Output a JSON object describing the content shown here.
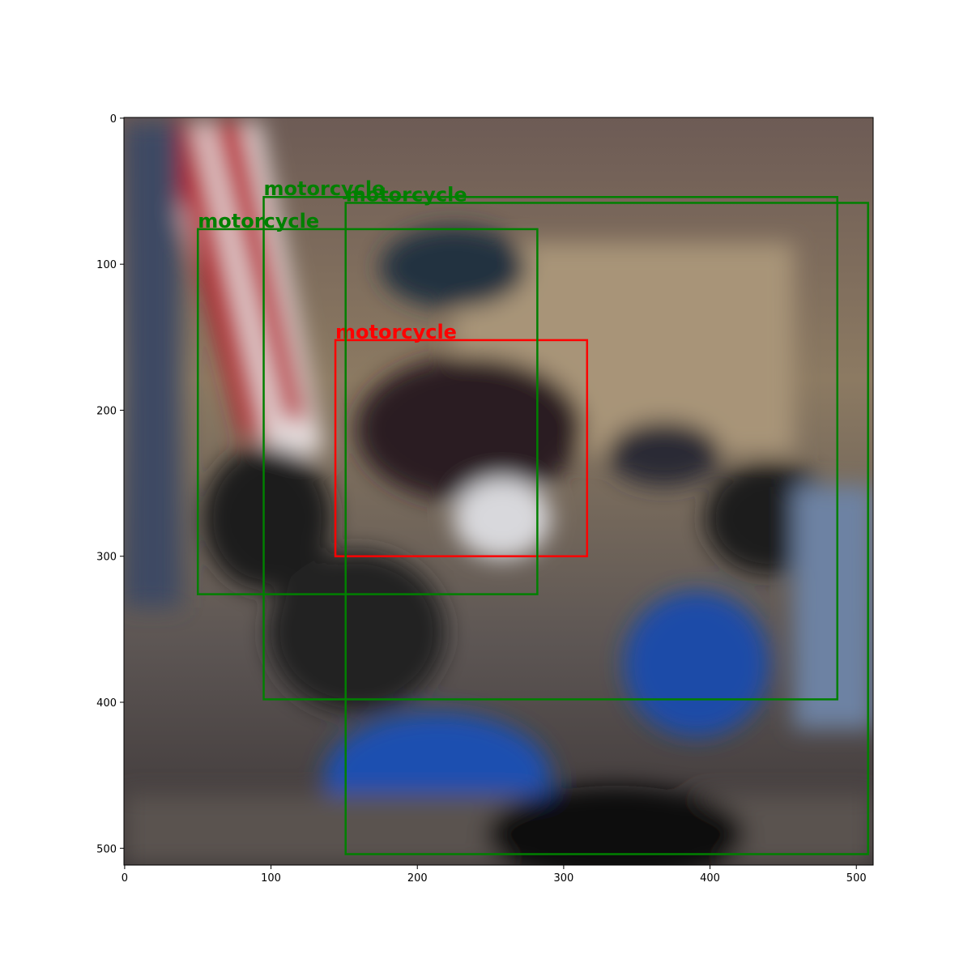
{
  "chart_data": {
    "type": "detection",
    "xlim": [
      -0.5,
      511.5
    ],
    "ylim": [
      511.5,
      -0.5
    ],
    "xticks": [
      0,
      100,
      200,
      300,
      400,
      500
    ],
    "yticks": [
      0,
      100,
      200,
      300,
      400,
      500
    ],
    "boxes": [
      {
        "label": "motorcycle",
        "color": "#ff0000",
        "x0": 144,
        "y0": 152,
        "x1": 316,
        "y1": 300
      },
      {
        "label": "motorcycle",
        "color": "#008000",
        "x0": 50,
        "y0": 76,
        "x1": 282,
        "y1": 326
      },
      {
        "label": "motorcycle",
        "color": "#008000",
        "x0": 95,
        "y0": 54,
        "x1": 487,
        "y1": 398
      },
      {
        "label": "motorcycle",
        "color": "#008000",
        "x0": 151,
        "y0": 58,
        "x1": 508,
        "y1": 504
      }
    ]
  }
}
